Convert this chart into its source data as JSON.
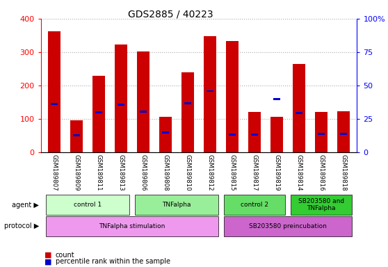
{
  "title": "GDS2885 / 40223",
  "samples": [
    "GSM189807",
    "GSM189809",
    "GSM189811",
    "GSM189813",
    "GSM189806",
    "GSM189808",
    "GSM189810",
    "GSM189812",
    "GSM189815",
    "GSM189817",
    "GSM189819",
    "GSM189814",
    "GSM189816",
    "GSM189818"
  ],
  "counts": [
    362,
    95,
    228,
    322,
    302,
    107,
    240,
    348,
    334,
    120,
    107,
    265,
    120,
    122
  ],
  "percentile_ranks": [
    36,
    12.5,
    30,
    35.75,
    30.5,
    15,
    36.75,
    45.75,
    13,
    13,
    40,
    29.5,
    13.75,
    13.75
  ],
  "bar_color": "#cc0000",
  "pct_color": "#0000cc",
  "ylim": [
    0,
    400
  ],
  "yticks_left": [
    0,
    100,
    200,
    300,
    400
  ],
  "ytick_labels_left": [
    "0",
    "100",
    "200",
    "300",
    "400"
  ],
  "yticks_right": [
    0,
    25,
    50,
    75,
    100
  ],
  "ytick_labels_right": [
    "0",
    "25",
    "50",
    "75",
    "100%"
  ],
  "agent_groups": [
    {
      "label": "control 1",
      "cols": [
        0,
        1,
        2,
        3
      ],
      "color": "#ccffcc"
    },
    {
      "label": "TNFalpha",
      "cols": [
        4,
        5,
        6,
        7
      ],
      "color": "#99ee99"
    },
    {
      "label": "control 2",
      "cols": [
        8,
        9,
        10
      ],
      "color": "#66dd66"
    },
    {
      "label": "SB203580 and\nTNFalpha",
      "cols": [
        11,
        12,
        13
      ],
      "color": "#33cc33"
    }
  ],
  "protocol_groups": [
    {
      "label": "TNFalpha stimulation",
      "cols": [
        0,
        1,
        2,
        3,
        4,
        5,
        6,
        7
      ],
      "color": "#ee99ee"
    },
    {
      "label": "SB203580 preincubation",
      "cols": [
        8,
        9,
        10,
        11,
        12,
        13
      ],
      "color": "#cc66cc"
    }
  ],
  "bar_width": 0.55,
  "grid_color": "#aaaaaa",
  "background_color": "#ffffff"
}
